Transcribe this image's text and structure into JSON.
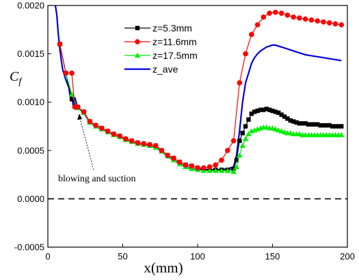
{
  "chart_data": {
    "type": "line",
    "xlabel": "x(mm)",
    "ylabel_main": "C",
    "ylabel_sub": "f",
    "xlim": [
      0,
      200
    ],
    "ylim": [
      -0.0005,
      0.002
    ],
    "xticks": [
      0,
      50,
      100,
      150,
      200
    ],
    "xtick_labels": [
      "0",
      "50",
      "100",
      "150",
      "200"
    ],
    "yticks": [
      -0.0005,
      0,
      0.0005,
      0.001,
      0.0015,
      0.002
    ],
    "ytick_labels": [
      "-0.0005",
      "0.0000",
      "0.0005",
      "0.0010",
      "0.0015",
      "0.0020"
    ],
    "legend_position": "top-center",
    "reference_line": {
      "y": 0,
      "style": "dashed",
      "color": "#000000"
    },
    "annotation": {
      "text": "blowing and suction",
      "arrow_to": [
        20,
        0.0009
      ]
    },
    "series": [
      {
        "name": "z=5.3mm",
        "color": "#000000",
        "marker": "square",
        "x": [
          8,
          12,
          16,
          20,
          24,
          28,
          32,
          36,
          40,
          44,
          48,
          52,
          56,
          60,
          64,
          68,
          72,
          76,
          80,
          84,
          88,
          92,
          96,
          100,
          104,
          108,
          112,
          116,
          120,
          124,
          126,
          128,
          130,
          132,
          134,
          136,
          138,
          140,
          142,
          144,
          146,
          148,
          150,
          152,
          154,
          156,
          158,
          160,
          162,
          164,
          166,
          168,
          170,
          172,
          174,
          176,
          178,
          180,
          182,
          184,
          186,
          188,
          190,
          192,
          194,
          196
        ],
        "y": [
          0.0016,
          0.0013,
          0.00103,
          0.00095,
          0.0009,
          0.0008,
          0.00076,
          0.00073,
          0.0007,
          0.00067,
          0.00065,
          0.00062,
          0.0006,
          0.00058,
          0.00057,
          0.00056,
          0.00055,
          0.0005,
          0.00045,
          0.00042,
          0.00038,
          0.00035,
          0.00034,
          0.00032,
          0.00031,
          0.0003,
          0.0003,
          0.0003,
          0.0003,
          0.00031,
          0.0004,
          0.0006,
          0.00068,
          0.00075,
          0.00082,
          0.00088,
          0.0009,
          0.00091,
          0.00092,
          0.00092,
          0.00093,
          0.00092,
          0.00091,
          0.0009,
          0.00089,
          0.00087,
          0.00085,
          0.00083,
          0.00081,
          0.0008,
          0.00079,
          0.00078,
          0.00078,
          0.00078,
          0.00077,
          0.00077,
          0.00077,
          0.00077,
          0.00076,
          0.00076,
          0.00076,
          0.00076,
          0.00075,
          0.00075,
          0.00075,
          0.00075
        ]
      },
      {
        "name": "z=11.6mm",
        "color": "#ff0000",
        "marker": "circle",
        "x": [
          8,
          12,
          16,
          18,
          20,
          24,
          28,
          32,
          36,
          40,
          44,
          48,
          52,
          56,
          60,
          64,
          68,
          72,
          76,
          80,
          84,
          88,
          92,
          96,
          100,
          104,
          108,
          112,
          116,
          120,
          124,
          128,
          132,
          136,
          140,
          144,
          148,
          152,
          156,
          160,
          164,
          168,
          172,
          176,
          180,
          184,
          188,
          192,
          196
        ],
        "y": [
          0.0016,
          0.0013,
          0.0013,
          0.00095,
          0.00095,
          0.0009,
          0.0008,
          0.00076,
          0.00073,
          0.0007,
          0.00067,
          0.00065,
          0.00062,
          0.0006,
          0.00058,
          0.00057,
          0.00056,
          0.00055,
          0.0005,
          0.00045,
          0.00042,
          0.00038,
          0.00035,
          0.00034,
          0.00032,
          0.00032,
          0.00033,
          0.00035,
          0.0004,
          0.0005,
          0.0006,
          0.0012,
          0.0015,
          0.0017,
          0.0018,
          0.00188,
          0.00192,
          0.00193,
          0.00192,
          0.0019,
          0.00188,
          0.00187,
          0.00186,
          0.00185,
          0.00184,
          0.00183,
          0.00182,
          0.00181,
          0.0018
        ]
      },
      {
        "name": "z=17.5mm",
        "color": "#00ee00",
        "marker": "triangle",
        "x": [
          8,
          12,
          16,
          20,
          24,
          28,
          32,
          36,
          40,
          44,
          48,
          52,
          56,
          60,
          64,
          68,
          72,
          76,
          80,
          84,
          88,
          92,
          96,
          100,
          104,
          108,
          112,
          116,
          120,
          124,
          126,
          128,
          130,
          132,
          134,
          136,
          138,
          140,
          142,
          144,
          146,
          148,
          150,
          152,
          154,
          156,
          158,
          160,
          162,
          164,
          166,
          168,
          170,
          172,
          174,
          176,
          178,
          180,
          182,
          184,
          186,
          188,
          190,
          192,
          194,
          196
        ],
        "y": [
          0.0016,
          0.0013,
          0.00108,
          0.00094,
          0.00089,
          0.00079,
          0.00075,
          0.00072,
          0.00069,
          0.00066,
          0.00064,
          0.00061,
          0.00059,
          0.00057,
          0.00056,
          0.00055,
          0.00053,
          0.00049,
          0.00044,
          0.0004,
          0.00036,
          0.00033,
          0.00031,
          0.0003,
          0.00029,
          0.00029,
          0.00029,
          0.00029,
          0.00029,
          0.00028,
          0.00033,
          0.00045,
          0.00055,
          0.00062,
          0.00067,
          0.0007,
          0.00071,
          0.00072,
          0.00073,
          0.00074,
          0.00074,
          0.00073,
          0.00073,
          0.00072,
          0.00071,
          0.0007,
          0.00069,
          0.00068,
          0.00068,
          0.00067,
          0.00067,
          0.00067,
          0.00066,
          0.00066,
          0.00066,
          0.00066,
          0.00066,
          0.00066,
          0.00066,
          0.00066,
          0.00066,
          0.00066,
          0.00066,
          0.00066,
          0.00066,
          0.00066
        ]
      },
      {
        "name": "z_ave",
        "color": "#0000dd",
        "marker": "none",
        "x": [
          5,
          6,
          7,
          8,
          9,
          10,
          12,
          14,
          15,
          16,
          17,
          18,
          20,
          24,
          28,
          32,
          36,
          40,
          44,
          48,
          52,
          56,
          60,
          64,
          68,
          72,
          76,
          80,
          84,
          88,
          92,
          96,
          100,
          104,
          108,
          112,
          116,
          120,
          124,
          126,
          128,
          130,
          132,
          134,
          136,
          138,
          140,
          142,
          144,
          146,
          148,
          150,
          152,
          154,
          156,
          158,
          160,
          164,
          168,
          172,
          176,
          180,
          184,
          188,
          192,
          196
        ],
        "y": [
          0.002,
          0.0019,
          0.0017,
          0.00155,
          0.00143,
          0.00133,
          0.00123,
          0.00115,
          0.00105,
          0.0011,
          0.00095,
          0.00105,
          0.00094,
          0.00089,
          0.00079,
          0.00075,
          0.00072,
          0.00069,
          0.00066,
          0.00064,
          0.00061,
          0.00059,
          0.00057,
          0.00056,
          0.00055,
          0.00053,
          0.00049,
          0.00044,
          0.0004,
          0.00036,
          0.00033,
          0.00031,
          0.0003,
          0.0003,
          0.0003,
          0.0003,
          0.0003,
          0.00031,
          0.00033,
          0.00045,
          0.0007,
          0.001,
          0.0012,
          0.0013,
          0.0014,
          0.00146,
          0.0015,
          0.00153,
          0.00155,
          0.00157,
          0.00158,
          0.00159,
          0.00159,
          0.00158,
          0.00157,
          0.00156,
          0.00155,
          0.00153,
          0.00151,
          0.00149,
          0.00148,
          0.00147,
          0.00146,
          0.00145,
          0.00144,
          0.00143
        ]
      }
    ]
  }
}
